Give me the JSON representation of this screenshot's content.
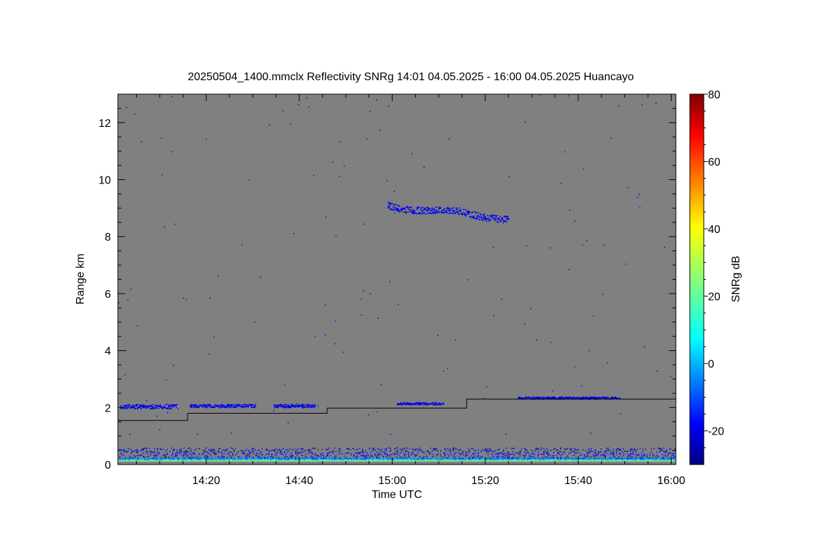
{
  "chart_data": {
    "type": "heatmap",
    "title": "20250504_1400.mmclx Reflectivity SNRg   14:01 04.05.2025 - 16:00 04.05.2025 Huancayo",
    "xlabel": "Time UTC",
    "ylabel": "Range km",
    "x_range_min": [
      841,
      961
    ],
    "y_range_km": [
      0,
      13
    ],
    "x_ticks": [
      {
        "value": 860,
        "label": "14:20"
      },
      {
        "value": 880,
        "label": "14:40"
      },
      {
        "value": 900,
        "label": "15:00"
      },
      {
        "value": 920,
        "label": "15:20"
      },
      {
        "value": 940,
        "label": "15:40"
      },
      {
        "value": 960,
        "label": "16:00"
      }
    ],
    "y_ticks": [
      0,
      2,
      4,
      6,
      8,
      10,
      12
    ],
    "background_color": "#808080",
    "colorbar": {
      "label": "SNRg dB",
      "range": [
        -30,
        80
      ],
      "ticks": [
        -20,
        0,
        20,
        40,
        60,
        80
      ],
      "colormap": "jet"
    },
    "cloud_layers": [
      {
        "name": "low cloud 1",
        "x_start": 841.5,
        "x_end": 853.5,
        "y_km": 2.05,
        "thickness_km": 0.15
      },
      {
        "name": "low cloud 2",
        "x_start": 856.5,
        "x_end": 870.5,
        "y_km": 2.07,
        "thickness_km": 0.12
      },
      {
        "name": "low cloud 3",
        "x_start": 874.5,
        "x_end": 883.5,
        "y_km": 2.07,
        "thickness_km": 0.12
      },
      {
        "name": "low cloud 4",
        "x_start": 901,
        "x_end": 911,
        "y_km": 2.15,
        "thickness_km": 0.08
      },
      {
        "name": "low cloud 5",
        "x_start": 927,
        "x_end": 949,
        "y_km": 2.35,
        "thickness_km": 0.08
      },
      {
        "name": "upper cloud",
        "x_start": 899,
        "x_end": 925,
        "y_km": 9.1,
        "thickness_km": 0.25
      }
    ],
    "step_line": [
      {
        "x": 841,
        "y_km": 1.55
      },
      {
        "x": 856,
        "y_km": 1.55
      },
      {
        "x": 856,
        "y_km": 1.8
      },
      {
        "x": 886,
        "y_km": 1.8
      },
      {
        "x": 886,
        "y_km": 1.98
      },
      {
        "x": 916,
        "y_km": 1.98
      },
      {
        "x": 916,
        "y_km": 2.3
      },
      {
        "x": 961,
        "y_km": 2.3
      }
    ],
    "surface_clutter": {
      "y_max_km": 0.6,
      "value_dB_range": [
        -25,
        15
      ]
    }
  }
}
